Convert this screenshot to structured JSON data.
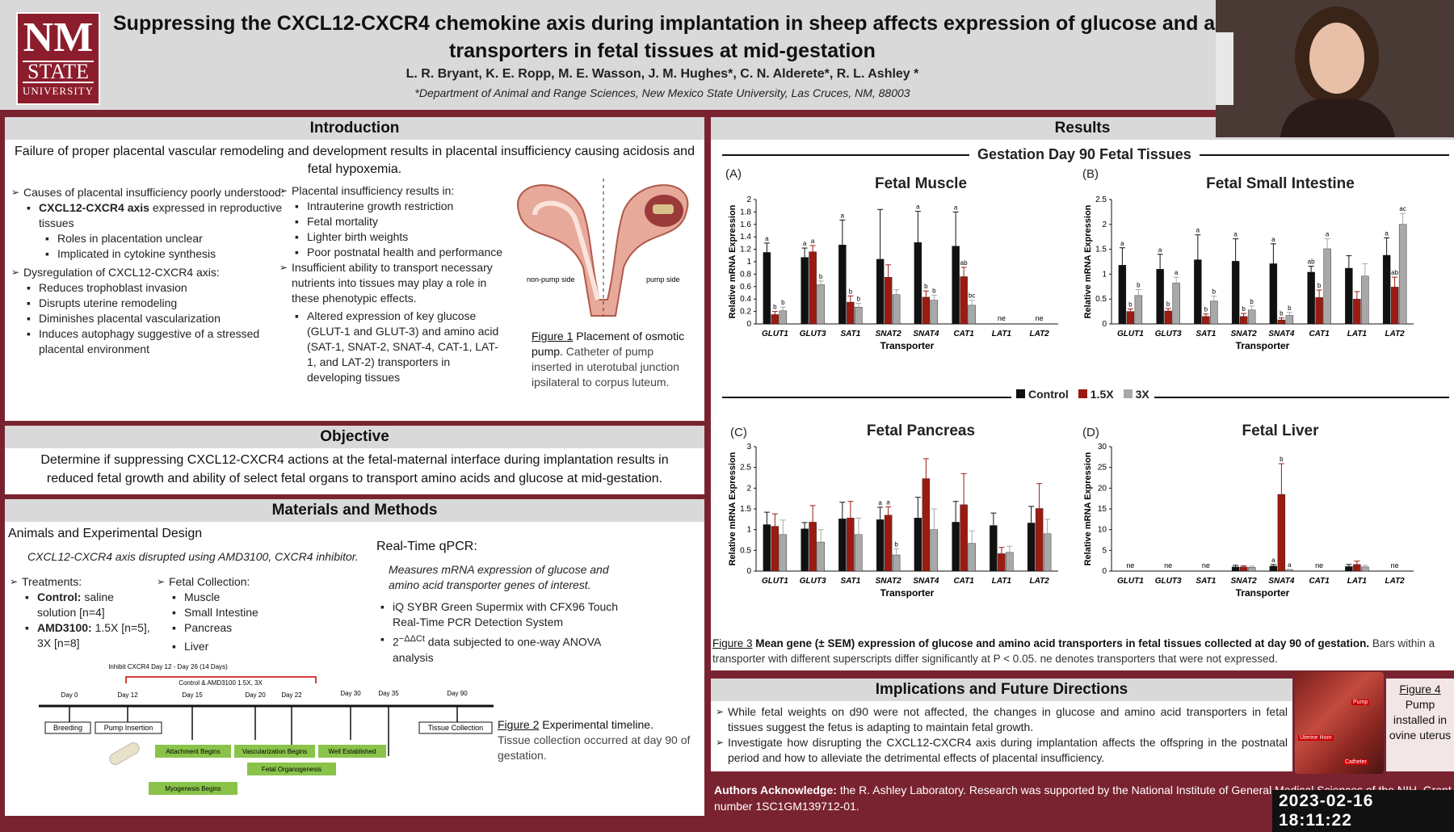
{
  "logo": {
    "nm": "NM",
    "state": "STATE",
    "university": "UNIVERSITY"
  },
  "header": {
    "title_line1": "Suppressing the CXCL12-CXCR4 chemokine axis during implantation in sheep affects expression of glucose and am",
    "title_line2": "transporters in fetal tissues at mid-gestation",
    "authors": "L. R. Bryant, K. E. Ropp, M. E. Wasson, J. M. Hughes*, C. N. Alderete*, R. L. Ashley *",
    "affiliation": "*Department of Animal and Range Sciences, New Mexico State University, Las Cruces, NM, 88003"
  },
  "introduction": {
    "heading": "Introduction",
    "lead": "Failure of proper placental vascular remodeling and development results in placental insufficiency causing acidosis and fetal hypoxemia.",
    "causes_heading": "Causes of placental insufficiency poorly understood:",
    "causes_item_bold": "CXCL12-CXCR4 axis",
    "causes_item_rest": " expressed in reproductive tissues",
    "causes_subitems": [
      "Roles in placentation unclear",
      "Implicated in cytokine synthesis"
    ],
    "dysreg_heading": "Dysregulation of CXCL12-CXCR4 axis:",
    "dysreg_items": [
      "Reduces trophoblast invasion",
      "Disrupts uterine remodeling",
      "Diminishes placental vascularization",
      "Induces autophagy suggestive of a stressed placental environment"
    ],
    "results_in_heading": "Placental insufficiency results in:",
    "results_in_items": [
      "Intrauterine growth restriction",
      "Fetal mortality",
      "Lighter birth weights",
      "Poor postnatal health and performance"
    ],
    "insufficient": "Insufficient ability to transport necessary nutrients into tissues may play a role in these phenotypic effects.",
    "altered": "Altered expression of key glucose (GLUT-1 and GLUT-3) and amino acid (SAT-1, SNAT-2, SNAT-4, CAT-1, LAT-1, and LAT-2) transporters in developing tissues",
    "fig1_label": "Figure 1",
    "fig1_title": " Placement of osmotic pump.",
    "fig1_text": " Catheter of pump inserted in uterotubal junction ipsilateral to corpus luteum.",
    "fig1_nonpump": "non-pump side",
    "fig1_pump": "pump side"
  },
  "objective": {
    "heading": "Objective",
    "text": "Determine if suppressing CXCL12-CXCR4 actions at the fetal-maternal interface during implantation results in reduced fetal growth and ability of select fetal organs to transport amino acids and glucose at mid-gestation."
  },
  "methods": {
    "heading": "Materials and Methods",
    "animals_heading": "Animals and Experimental Design",
    "animals_sub": "CXCL12-CXCR4 axis disrupted using AMD3100, CXCR4 inhibitor.",
    "treatments_heading": "Treatments:",
    "control_bold": "Control:",
    "control_rest": " saline solution [n=4]",
    "amd_bold": "AMD3100:",
    "amd_rest": " 1.5X [n=5], 3X [n=8]",
    "collection_heading": "Fetal Collection:",
    "collection_items": [
      "Muscle",
      "Small Intestine",
      "Pancreas",
      "Liver"
    ],
    "qpcr_heading": "Real-Time qPCR:",
    "qpcr_sub": "Measures mRNA expression of glucose and amino acid transporter genes of interest.",
    "qpcr_item1": "iQ SYBR Green Supermix with CFX96 Touch Real-Time PCR Detection System",
    "qpcr_item2_sup": "2",
    "qpcr_item2_exp": "−ΔΔCt",
    "qpcr_item2_rest": " data subjected to one-way ANOVA analysis",
    "fig2_label": "Figure 2",
    "fig2_title": " Experimental timeline.",
    "fig2_text": "Tissue collection occurred at day 90 of gestation.",
    "timeline": {
      "inhibit": "Inhibit CXCR4 Day 12 - Day 26 (14 Days)",
      "control_amd": "Control & AMD3100 1.5X, 3X",
      "days": [
        "Day 0",
        "Day 12",
        "Day 15",
        "Day 20",
        "Day 22",
        "Day 30",
        "Day 35",
        "Day 90"
      ],
      "breeding": "Breeding",
      "pump": "Pump Insertion",
      "tissue": "Tissue Collection",
      "attachment": "Attachment Begins",
      "vascularization": "Vascularization Begins",
      "well": "Well Established",
      "organogenesis": "Fetal Organogenesis",
      "myogenesis": "Myogenesis Begins"
    }
  },
  "results": {
    "heading": "Results",
    "subheading": "Gestation Day 90 Fetal Tissues",
    "legend": [
      "Control",
      "1.5X",
      "3X"
    ],
    "fig3_label": "Figure 3",
    "fig3_bold": " Mean gene (± SEM) expression of glucose and amino acid transporters in fetal tissues collected at day 90 of gestation.",
    "fig3_rest": " Bars within a transporter with different superscripts differ significantly at P < 0.05. ne denotes transporters that were not expressed."
  },
  "chart_data": [
    {
      "type": "bar",
      "panel": "(A)",
      "title": "Fetal Muscle",
      "categories": [
        "GLUT1",
        "GLUT3",
        "SAT1",
        "SNAT2",
        "SNAT4",
        "CAT1",
        "LAT1",
        "LAT2"
      ],
      "xlabel": "Transporter",
      "ylabel": "Relative mRNA Expression",
      "ylim": [
        0,
        2
      ],
      "ticks": [
        "0",
        "0.2",
        "0.4",
        "0.6",
        "0.8",
        "1",
        "1.2",
        "1.4",
        "1.6",
        "1.8",
        "2"
      ],
      "series": [
        {
          "name": "Control",
          "values": [
            1.15,
            1.07,
            1.27,
            1.04,
            1.31,
            1.25,
            null,
            null
          ],
          "errors": [
            0.15,
            0.15,
            0.4,
            0.8,
            0.5,
            0.55,
            null,
            null
          ]
        },
        {
          "name": "1.5X",
          "values": [
            0.15,
            1.16,
            0.35,
            0.75,
            0.43,
            0.76,
            null,
            null
          ],
          "errors": [
            0.05,
            0.1,
            0.1,
            0.2,
            0.1,
            0.15,
            null,
            null
          ]
        },
        {
          "name": "3X",
          "values": [
            0.21,
            0.63,
            0.27,
            0.47,
            0.38,
            0.3,
            null,
            null
          ],
          "errors": [
            0.06,
            0.06,
            0.06,
            0.08,
            0.08,
            0.08,
            null,
            null
          ]
        }
      ],
      "labels": [
        [
          "a",
          "b",
          "b"
        ],
        [
          "a",
          "a",
          "b"
        ],
        [
          "a",
          "b",
          "b"
        ],
        [
          "",
          "",
          ""
        ],
        [
          "a",
          "b",
          "b"
        ],
        [
          "a",
          "ab",
          "bc"
        ],
        [
          "ne"
        ],
        [
          "ne"
        ]
      ]
    },
    {
      "type": "bar",
      "panel": "(B)",
      "title": "Fetal Small Intestine",
      "categories": [
        "GLUT1",
        "GLUT3",
        "SAT1",
        "SNAT2",
        "SNAT4",
        "CAT1",
        "LAT1",
        "LAT2"
      ],
      "xlabel": "Transporter",
      "ylabel": "Relative mRNA Expression",
      "ylim": [
        0,
        2.5
      ],
      "ticks": [
        "0",
        "0.5",
        "1",
        "1.5",
        "2",
        "2.5"
      ],
      "series": [
        {
          "name": "Control",
          "values": [
            1.18,
            1.1,
            1.29,
            1.26,
            1.21,
            1.04,
            1.12,
            1.38
          ],
          "errors": [
            0.35,
            0.3,
            0.5,
            0.45,
            0.4,
            0.12,
            0.25,
            0.35
          ]
        },
        {
          "name": "1.5X",
          "values": [
            0.25,
            0.26,
            0.15,
            0.15,
            0.08,
            0.53,
            0.5,
            0.74
          ],
          "errors": [
            0.05,
            0.05,
            0.05,
            0.06,
            0.04,
            0.15,
            0.15,
            0.2
          ]
        },
        {
          "name": "3X",
          "values": [
            0.57,
            0.82,
            0.46,
            0.28,
            0.17,
            1.51,
            0.96,
            2.0
          ],
          "errors": [
            0.12,
            0.12,
            0.1,
            0.08,
            0.06,
            0.2,
            0.25,
            0.22
          ]
        }
      ],
      "labels": [
        [
          "a",
          "b",
          "b"
        ],
        [
          "a",
          "b",
          "a"
        ],
        [
          "a",
          "b",
          "b"
        ],
        [
          "a",
          "b",
          "b"
        ],
        [
          "a",
          "b",
          "b"
        ],
        [
          "ab",
          "b",
          "a"
        ],
        [
          "",
          "",
          ""
        ],
        [
          "a",
          "ab",
          "ac"
        ]
      ]
    },
    {
      "type": "bar",
      "panel": "(C)",
      "title": "Fetal Pancreas",
      "categories": [
        "GLUT1",
        "GLUT3",
        "SAT1",
        "SNAT2",
        "SNAT4",
        "CAT1",
        "LAT1",
        "LAT2"
      ],
      "xlabel": "Transporter",
      "ylabel": "Relative mRNA Expression",
      "ylim": [
        0,
        3
      ],
      "ticks": [
        "0",
        "0.5",
        "1",
        "1.5",
        "2",
        "2.5",
        "3"
      ],
      "series": [
        {
          "name": "Control",
          "values": [
            1.12,
            1.02,
            1.26,
            1.24,
            1.28,
            1.18,
            1.1,
            1.16
          ],
          "errors": [
            0.3,
            0.15,
            0.4,
            0.3,
            0.5,
            0.5,
            0.3,
            0.4
          ]
        },
        {
          "name": "1.5X",
          "values": [
            1.08,
            1.18,
            1.28,
            1.35,
            2.23,
            1.6,
            0.42,
            1.51
          ],
          "errors": [
            0.3,
            0.4,
            0.4,
            0.2,
            0.48,
            0.75,
            0.15,
            0.6
          ]
        },
        {
          "name": "3X",
          "values": [
            0.88,
            0.7,
            0.88,
            0.39,
            1.0,
            0.67,
            0.45,
            0.9
          ],
          "errors": [
            0.35,
            0.3,
            0.4,
            0.15,
            0.5,
            0.3,
            0.15,
            0.35
          ]
        }
      ],
      "labels": [
        [
          "",
          "",
          ""
        ],
        [
          "",
          "",
          ""
        ],
        [
          "",
          "",
          ""
        ],
        [
          "a",
          "a",
          "b"
        ],
        [
          "",
          "",
          ""
        ],
        [
          "",
          "",
          ""
        ],
        [
          "",
          "",
          ""
        ],
        [
          "",
          "",
          ""
        ]
      ]
    },
    {
      "type": "bar",
      "panel": "(D)",
      "title": "Fetal Liver",
      "categories": [
        "GLUT1",
        "GLUT3",
        "SAT1",
        "SNAT2",
        "SNAT4",
        "CAT1",
        "LAT1",
        "LAT2"
      ],
      "xlabel": "Transporter",
      "ylabel": "Relative mRNA Expression",
      "ylim": [
        0,
        30
      ],
      "ticks": [
        "0",
        "5",
        "10",
        "15",
        "20",
        "25",
        "30"
      ],
      "series": [
        {
          "name": "Control",
          "values": [
            null,
            null,
            null,
            1.0,
            1.2,
            null,
            1.1,
            null
          ],
          "errors": [
            null,
            null,
            null,
            0.4,
            0.4,
            null,
            0.5,
            null
          ]
        },
        {
          "name": "1.5X",
          "values": [
            null,
            null,
            null,
            1.0,
            18.5,
            null,
            1.6,
            null
          ],
          "errors": [
            null,
            null,
            null,
            0.3,
            7.4,
            null,
            0.8,
            null
          ]
        },
        {
          "name": "3X",
          "values": [
            null,
            null,
            null,
            0.9,
            0.3,
            null,
            1.0,
            null
          ],
          "errors": [
            null,
            null,
            null,
            0.3,
            0.1,
            null,
            0.4,
            null
          ]
        }
      ],
      "labels": [
        [
          "ne"
        ],
        [
          "ne"
        ],
        [
          "ne"
        ],
        [
          "",
          "",
          ""
        ],
        [
          "a",
          "b",
          "a"
        ],
        [
          "ne"
        ],
        [
          "",
          "",
          ""
        ],
        [
          "ne"
        ]
      ]
    }
  ],
  "implications": {
    "heading": "Implications and Future Directions",
    "items": [
      "While fetal weights on d90 were not affected, the changes in glucose and amino acid transporters in fetal tissues suggest the fetus is adapting to maintain fetal growth.",
      "Investigate how disrupting the CXCL12-CXCR4 axis during implantation affects the offspring in the postnatal period and how to alleviate the detrimental effects of placental insufficiency."
    ],
    "fig4_label": "Figure 4",
    "fig4_text": "Pump installed in ovine uterus",
    "fig4_pump": "Pump",
    "fig4_horn": "Uterine Horn",
    "fig4_catheter": "Catheter"
  },
  "acknowledge": {
    "bold": "Authors Acknowledge:",
    "text": " the R. Ashley Laboratory. Research was supported by the National Institute of General Medical Sciences of the NIH, Grant number 1SC1GM139712-01."
  },
  "timestamp": "2023-02-16  18:11:22",
  "colors": {
    "control": "#111111",
    "x15": "#9b1b12",
    "x3": "#a8a8a8",
    "maroon": "#7a2330"
  }
}
